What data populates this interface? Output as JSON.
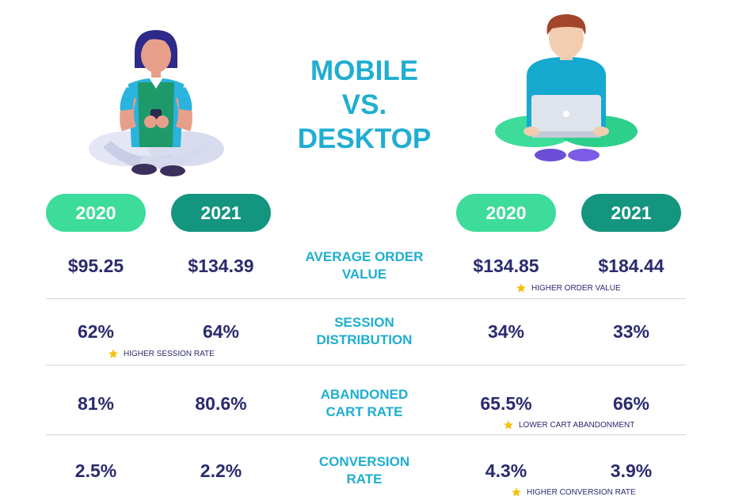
{
  "title": {
    "line1": "MOBILE",
    "line2": "VS.",
    "line3": "DESKTOP"
  },
  "colors": {
    "accent": "#1faed1",
    "value_text": "#2a2a6e",
    "pill_2020": "#3ddc9a",
    "pill_2021": "#14957f",
    "star": "#f5c10d"
  },
  "mobile": {
    "years": [
      "2020",
      "2021"
    ]
  },
  "desktop": {
    "years": [
      "2020",
      "2021"
    ]
  },
  "metrics": [
    {
      "label_line1": "AVERAGE ORDER",
      "label_line2": "VALUE",
      "mobile": [
        "$95.25",
        "$134.39"
      ],
      "desktop": [
        "$134.85",
        "$184.44"
      ],
      "note": "HIGHER ORDER VALUE"
    },
    {
      "label_line1": "SESSION",
      "label_line2": "DISTRIBUTION",
      "mobile": [
        "62%",
        "64%"
      ],
      "desktop": [
        "34%",
        "33%"
      ],
      "note": "HIGHER SESSION RATE"
    },
    {
      "label_line1": "ABANDONED",
      "label_line2": "CART RATE",
      "mobile": [
        "81%",
        "80.6%"
      ],
      "desktop": [
        "65.5%",
        "66%"
      ],
      "note": "LOWER CART ABANDONMENT"
    },
    {
      "label_line1": "CONVERSION",
      "label_line2": "RATE",
      "mobile": [
        "2.5%",
        "2.2%"
      ],
      "desktop": [
        "4.3%",
        "3.9%"
      ],
      "note": "HIGHER CONVERSION RATE"
    }
  ],
  "icons": [
    "mobile-user-illustration-icon",
    "desktop-user-illustration-icon",
    "star-icon"
  ]
}
